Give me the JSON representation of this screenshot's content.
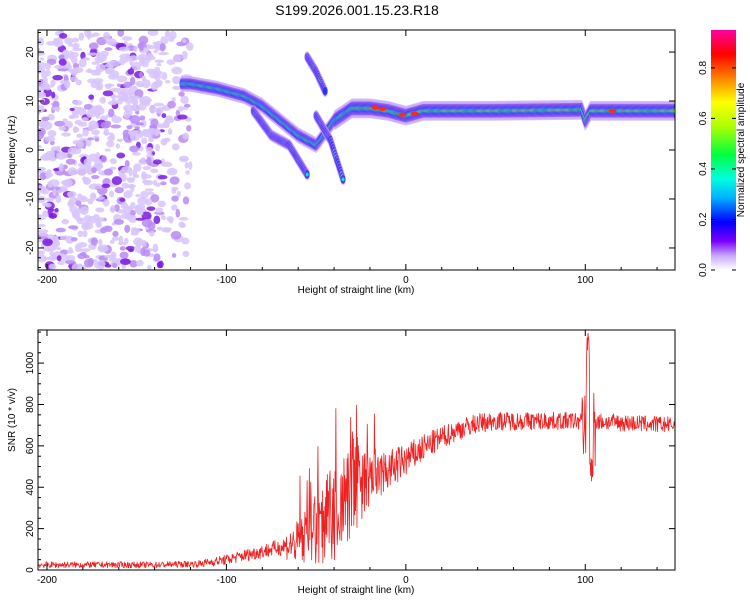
{
  "figure": {
    "title": "S199.2026.001.15.23.R18"
  },
  "chart_data": [
    {
      "type": "heatmap",
      "title": "S199.2026.001.15.23.R18",
      "xlabel": "Height of straight line (km)",
      "ylabel": "Frequency (Hz)",
      "xlim": [
        -205,
        150
      ],
      "ylim": [
        -24.5,
        24.5
      ],
      "xticks": [
        -200,
        -100,
        0,
        100
      ],
      "yticks": [
        -20,
        -10,
        0,
        10,
        20
      ],
      "colorbar": {
        "label": "Normalized spectral amplitude",
        "range": [
          0,
          0.95
        ],
        "ticks": [
          0.0,
          0.2,
          0.4,
          0.6,
          0.8
        ]
      },
      "features": [
        {
          "name": "noise-region",
          "x_range": [
            -205,
            -120
          ],
          "y_range": [
            -24,
            24
          ]
        },
        {
          "name": "main-band",
          "points": [
            [
              -120,
              13.5
            ],
            [
              -105,
              12.5
            ],
            [
              -90,
              11
            ],
            [
              -80,
              9
            ],
            [
              -70,
              6
            ],
            [
              -60,
              3
            ],
            [
              -50,
              1
            ],
            [
              -40,
              6
            ],
            [
              -30,
              8.5
            ],
            [
              -20,
              8.5
            ],
            [
              -10,
              8
            ],
            [
              0,
              7
            ],
            [
              10,
              8
            ],
            [
              50,
              8
            ],
            [
              98,
              8.2
            ],
            [
              100,
              6
            ],
            [
              103,
              8
            ],
            [
              150,
              8
            ]
          ]
        },
        {
          "name": "lower-branch",
          "points": [
            [
              -85,
              8
            ],
            [
              -75,
              3
            ],
            [
              -65,
              1
            ],
            [
              -55,
              -5
            ]
          ]
        },
        {
          "name": "upper-streak",
          "points": [
            [
              -55,
              19
            ],
            [
              -50,
              16
            ],
            [
              -45,
              12
            ]
          ]
        },
        {
          "name": "lower-streak",
          "points": [
            [
              -50,
              7
            ],
            [
              -42,
              2
            ],
            [
              -35,
              -6
            ]
          ]
        }
      ]
    },
    {
      "type": "line",
      "xlabel": "Height of straight line (km)",
      "ylabel": "SNR (10 * v/v)",
      "xlim": [
        -205,
        150
      ],
      "ylim": [
        0,
        1160
      ],
      "xticks": [
        -200,
        -100,
        0,
        100
      ],
      "yticks": [
        0,
        200,
        400,
        600,
        800,
        1000
      ],
      "color": "#ee2222",
      "profile": [
        [
          -205,
          25
        ],
        [
          -140,
          25
        ],
        [
          -115,
          30
        ],
        [
          -100,
          50
        ],
        [
          -80,
          90
        ],
        [
          -60,
          130
        ],
        [
          -50,
          200
        ],
        [
          -40,
          270
        ],
        [
          -30,
          350
        ],
        [
          -20,
          430
        ],
        [
          -10,
          480
        ],
        [
          0,
          530
        ],
        [
          10,
          590
        ],
        [
          20,
          640
        ],
        [
          30,
          680
        ],
        [
          40,
          710
        ],
        [
          50,
          720
        ],
        [
          100,
          720
        ],
        [
          150,
          700
        ]
      ],
      "noise": [
        [
          -205,
          15
        ],
        [
          -120,
          15
        ],
        [
          -70,
          40
        ],
        [
          -55,
          150
        ],
        [
          -35,
          280
        ],
        [
          -20,
          130
        ],
        [
          0,
          80
        ],
        [
          20,
          55
        ],
        [
          50,
          45
        ],
        [
          150,
          40
        ]
      ],
      "spike": {
        "x": 102,
        "peak": 1160,
        "trough": 420
      }
    }
  ]
}
